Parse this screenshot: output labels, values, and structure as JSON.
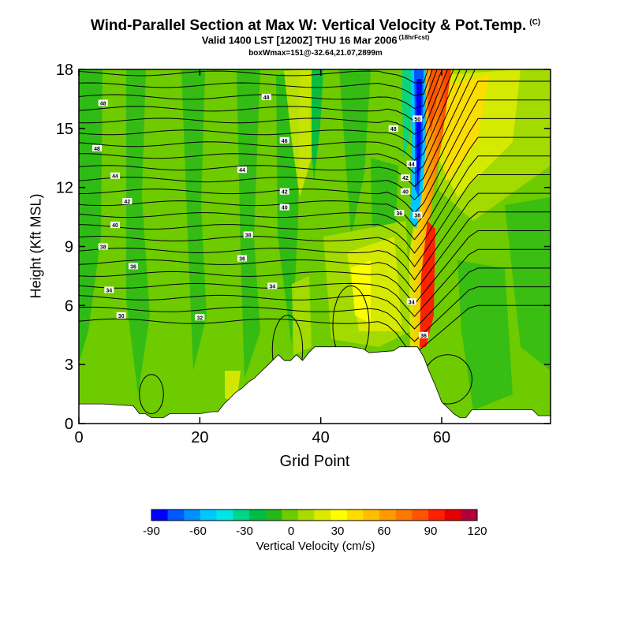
{
  "title": "Wind-Parallel Section at Max W: Vertical Velocity & Pot.Temp.",
  "title_mark": "(C)",
  "subtitle": "Valid 1400 LST [1200Z] THU 16 Mar 2006",
  "subtitle_note": "(18hrFcst)",
  "subtitle2": "boxWmax=151@-32.64,21.07,2899m",
  "chart_data": {
    "type": "heatmap",
    "title": "Wind-Parallel Section at Max W: Vertical Velocity & Pot.Temp.",
    "xlabel": "Grid Point",
    "ylabel": "Height (Kft MSL)",
    "xlim": [
      0,
      78
    ],
    "ylim": [
      0,
      18
    ],
    "x_ticks": [
      0,
      20,
      40,
      60
    ],
    "y_ticks": [
      0,
      3,
      6,
      9,
      12,
      15,
      18
    ],
    "colorbar": {
      "label": "Vertical Velocity (cm/s)",
      "tick_labels": [
        "-90",
        "-60",
        "-30",
        "0",
        "30",
        "60",
        "90",
        "120"
      ],
      "tick_values": [
        -90,
        -60,
        -30,
        0,
        30,
        60,
        90,
        120
      ],
      "colors": [
        "#0000ff",
        "#0058ff",
        "#0090ff",
        "#00c8ff",
        "#00e6e6",
        "#00d58a",
        "#00bb44",
        "#25b81a",
        "#6ecb00",
        "#a8dc00",
        "#dcea00",
        "#ffff00",
        "#ffdc00",
        "#ffbe00",
        "#ff9b00",
        "#ff7800",
        "#ff5500",
        "#ff2000",
        "#e60000",
        "#b2003c"
      ]
    },
    "theta_contour_labels": [
      {
        "label": "48",
        "x": 4,
        "y": 16.3
      },
      {
        "label": "48",
        "x": 3,
        "y": 14.0
      },
      {
        "label": "44",
        "x": 6,
        "y": 12.6
      },
      {
        "label": "42",
        "x": 8,
        "y": 11.3
      },
      {
        "label": "40",
        "x": 6,
        "y": 10.1
      },
      {
        "label": "38",
        "x": 4,
        "y": 9.0
      },
      {
        "label": "36",
        "x": 9,
        "y": 8.0
      },
      {
        "label": "34",
        "x": 5,
        "y": 6.8
      },
      {
        "label": "30",
        "x": 7,
        "y": 5.5
      },
      {
        "label": "32",
        "x": 20,
        "y": 5.4
      },
      {
        "label": "48",
        "x": 31,
        "y": 16.6
      },
      {
        "label": "46",
        "x": 34,
        "y": 14.4
      },
      {
        "label": "44",
        "x": 27,
        "y": 12.9
      },
      {
        "label": "42",
        "x": 34,
        "y": 11.8
      },
      {
        "label": "40",
        "x": 34,
        "y": 11.0
      },
      {
        "label": "38",
        "x": 28,
        "y": 9.6
      },
      {
        "label": "36",
        "x": 27,
        "y": 8.4
      },
      {
        "label": "34",
        "x": 32,
        "y": 7.0
      },
      {
        "label": "48",
        "x": 52,
        "y": 15.0
      },
      {
        "label": "50",
        "x": 56,
        "y": 15.5
      },
      {
        "label": "44",
        "x": 55,
        "y": 13.2
      },
      {
        "label": "42",
        "x": 54,
        "y": 12.5
      },
      {
        "label": "40",
        "x": 54,
        "y": 11.8
      },
      {
        "label": "36",
        "x": 53,
        "y": 10.7
      },
      {
        "label": "38",
        "x": 56,
        "y": 10.6
      },
      {
        "label": "34",
        "x": 55,
        "y": 6.2
      },
      {
        "label": "36",
        "x": 57,
        "y": 4.5
      }
    ],
    "terrain_height_kft": [
      [
        0,
        1.0
      ],
      [
        4,
        1.0
      ],
      [
        9,
        0.9
      ],
      [
        10,
        0.5
      ],
      [
        11,
        0.5
      ],
      [
        12,
        0.3
      ],
      [
        14,
        0.3
      ],
      [
        15,
        0.5
      ],
      [
        20,
        0.5
      ],
      [
        22,
        0.6
      ],
      [
        23,
        0.6
      ],
      [
        24,
        1.0
      ],
      [
        25,
        1.3
      ],
      [
        26,
        1.6
      ],
      [
        27,
        1.8
      ],
      [
        28,
        2.1
      ],
      [
        29,
        2.3
      ],
      [
        30,
        2.6
      ],
      [
        31,
        2.9
      ],
      [
        32,
        3.2
      ],
      [
        33,
        3.5
      ],
      [
        34,
        3.2
      ],
      [
        35,
        3.2
      ],
      [
        36,
        3.5
      ],
      [
        37,
        3.2
      ],
      [
        38,
        3.6
      ],
      [
        39,
        3.9
      ],
      [
        44,
        3.9
      ],
      [
        45,
        3.9
      ],
      [
        47,
        3.8
      ],
      [
        48,
        3.6
      ],
      [
        52,
        3.7
      ],
      [
        53,
        3.9
      ],
      [
        56,
        3.9
      ],
      [
        57,
        3.4
      ],
      [
        58,
        2.6
      ],
      [
        59,
        1.9
      ],
      [
        60,
        1.1
      ],
      [
        61,
        0.8
      ],
      [
        62,
        0.5
      ],
      [
        63,
        0.3
      ],
      [
        64,
        0.3
      ],
      [
        65,
        0.7
      ],
      [
        66,
        0.7
      ],
      [
        75,
        0.7
      ],
      [
        76,
        0.4
      ],
      [
        78,
        0.4
      ]
    ]
  }
}
